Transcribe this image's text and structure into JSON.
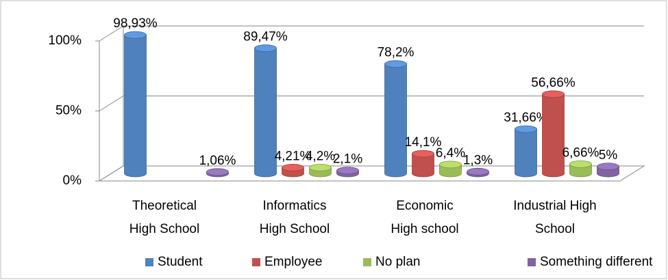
{
  "chart_data": {
    "type": "bar3d",
    "categories": [
      "Theoretical\nHigh School",
      "Informatics\nHigh School",
      "Economic\nHigh school",
      "Industrial High\nSchool"
    ],
    "series": [
      {
        "name": "Student",
        "color": "#4f81bd",
        "values": [
          98.93,
          89.47,
          78.2,
          31.66
        ],
        "value_labels": [
          "98,93%",
          "89,47%",
          "78,2%",
          "31,66%"
        ]
      },
      {
        "name": "Employee",
        "color": "#c0504d",
        "values": [
          null,
          4.21,
          14.1,
          56.66
        ],
        "value_labels": [
          null,
          "4,21%",
          "14,1%",
          "56,66%"
        ]
      },
      {
        "name": "No plan",
        "color": "#9bbb59",
        "values": [
          null,
          4.2,
          6.4,
          6.66
        ],
        "value_labels": [
          null,
          "4,2%",
          "6,4%",
          "6,66%"
        ]
      },
      {
        "name": "Something different",
        "color": "#8064a2",
        "values": [
          1.06,
          2.1,
          1.3,
          5
        ],
        "value_labels": [
          "1,06%",
          "2,1%",
          "1,3%",
          "5%"
        ]
      }
    ],
    "ylim": [
      0,
      100
    ],
    "yticks": [
      {
        "value": 0,
        "label": "0%"
      },
      {
        "value": 50,
        "label": "50%"
      },
      {
        "value": 100,
        "label": "100%"
      }
    ],
    "grid": true,
    "legend": "bottom"
  }
}
